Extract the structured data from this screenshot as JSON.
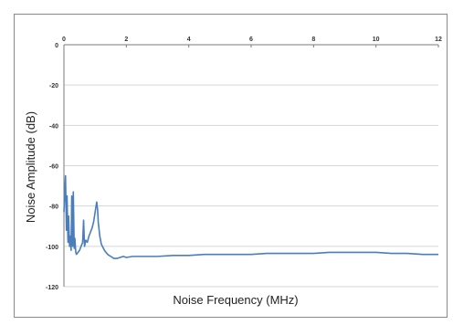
{
  "chart_data": {
    "type": "line",
    "title": "",
    "xlabel": "Noise Frequency (MHz)",
    "ylabel": "Noise Amplitude (dB)",
    "xlim": [
      0,
      12
    ],
    "ylim": [
      -120,
      0
    ],
    "x_ticks": [
      "0",
      "2",
      "4",
      "6",
      "8",
      "10",
      "12"
    ],
    "y_ticks": [
      "0",
      "-20",
      "-40",
      "-60",
      "-80",
      "-100",
      "-120"
    ],
    "x_axis_position": "top",
    "grid": true,
    "legend": "none",
    "series": [
      {
        "color": "#4a7ebb",
        "x": [
          0,
          0.05,
          0.08,
          0.1,
          0.13,
          0.15,
          0.18,
          0.2,
          0.23,
          0.25,
          0.28,
          0.3,
          0.33,
          0.35,
          0.38,
          0.4,
          0.45,
          0.5,
          0.55,
          0.6,
          0.63,
          0.66,
          0.7,
          0.75,
          0.8,
          0.85,
          0.9,
          0.95,
          1.0,
          1.05,
          1.08,
          1.1,
          1.15,
          1.2,
          1.3,
          1.4,
          1.5,
          1.6,
          1.7,
          1.8,
          1.9,
          2.0,
          2.2,
          2.5,
          3.0,
          3.5,
          4.0,
          4.5,
          5.0,
          5.5,
          6.0,
          6.5,
          7.0,
          7.5,
          8.0,
          8.5,
          9.0,
          9.5,
          10.0,
          10.5,
          11.0,
          11.5,
          12.0
        ],
        "y": [
          -83,
          -65,
          -92,
          -75,
          -98,
          -85,
          -100,
          -95,
          -102,
          -75,
          -100,
          -73,
          -101,
          -96,
          -103,
          -104,
          -103,
          -102,
          -100,
          -98,
          -87,
          -100,
          -97,
          -98,
          -95,
          -93,
          -91,
          -88,
          -83,
          -78,
          -82,
          -88,
          -95,
          -99,
          -102,
          -104,
          -105,
          -106,
          -106,
          -105.5,
          -105,
          -105.5,
          -105,
          -105,
          -105,
          -104.5,
          -104.5,
          -104,
          -104,
          -104,
          -104,
          -103.5,
          -103.5,
          -103.5,
          -103.5,
          -103,
          -103,
          -103,
          -103,
          -103.5,
          -103.5,
          -104,
          -104
        ]
      }
    ]
  }
}
